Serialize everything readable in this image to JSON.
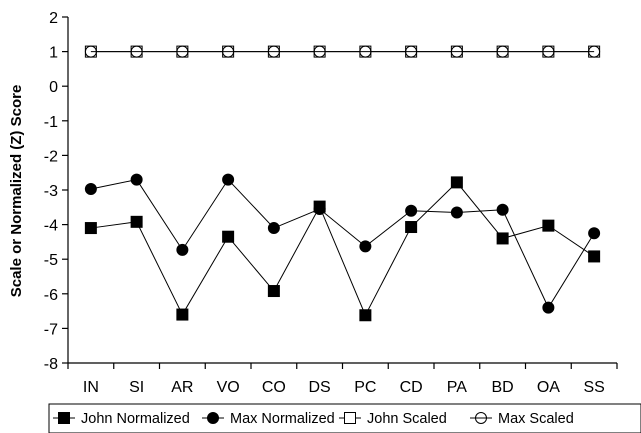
{
  "chart_data": {
    "type": "line",
    "title": "",
    "xlabel": "",
    "ylabel": "Scale or Normalized (Z) Score",
    "ylim": [
      -8,
      2
    ],
    "yticks": [
      2,
      1,
      0,
      -1,
      -2,
      -3,
      -4,
      -5,
      -6,
      -7,
      -8
    ],
    "grid": false,
    "legend_position": "bottom",
    "categories": [
      "IN",
      "SI",
      "AR",
      "VO",
      "CO",
      "DS",
      "PC",
      "CD",
      "PA",
      "BD",
      "OA",
      "SS"
    ],
    "series": [
      {
        "name": "John Normalized",
        "marker": "square-filled",
        "values": [
          -4.1,
          -3.92,
          -6.6,
          -4.35,
          -5.92,
          -3.48,
          -6.62,
          -4.07,
          -2.78,
          -4.4,
          -4.03,
          -4.92
        ]
      },
      {
        "name": "Max Normalized",
        "marker": "circle-filled",
        "values": [
          -2.97,
          -2.7,
          -4.73,
          -2.7,
          -4.1,
          -3.55,
          -4.63,
          -3.6,
          -3.65,
          -3.57,
          -6.4,
          -4.25
        ]
      },
      {
        "name": "John Scaled",
        "marker": "square-open",
        "values": [
          1,
          1,
          1,
          1,
          1,
          1,
          1,
          1,
          1,
          1,
          1,
          1
        ]
      },
      {
        "name": "Max Scaled",
        "marker": "circle-open",
        "values": [
          1,
          1,
          1,
          1,
          1,
          1,
          1,
          1,
          1,
          1,
          1,
          1
        ]
      }
    ]
  }
}
